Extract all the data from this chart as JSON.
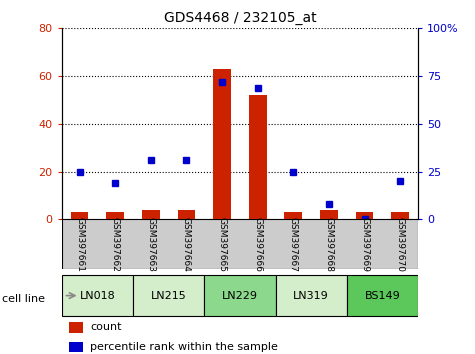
{
  "title": "GDS4468 / 232105_at",
  "samples": [
    "GSM397661",
    "GSM397662",
    "GSM397663",
    "GSM397664",
    "GSM397665",
    "GSM397666",
    "GSM397667",
    "GSM397668",
    "GSM397669",
    "GSM397670"
  ],
  "cell_lines": [
    {
      "name": "LN018",
      "span": [
        0,
        2
      ],
      "color": "#d4edca"
    },
    {
      "name": "LN215",
      "span": [
        2,
        4
      ],
      "color": "#d4edca"
    },
    {
      "name": "LN229",
      "span": [
        4,
        6
      ],
      "color": "#8cd88c"
    },
    {
      "name": "LN319",
      "span": [
        6,
        8
      ],
      "color": "#d4edca"
    },
    {
      "name": "BS149",
      "span": [
        8,
        10
      ],
      "color": "#5cc85c"
    }
  ],
  "count_values": [
    3,
    3,
    4,
    4,
    63,
    52,
    3,
    4,
    3,
    3
  ],
  "percentile_values": [
    25,
    19,
    31,
    31,
    72,
    69,
    25,
    8,
    0,
    20
  ],
  "left_ylim": [
    0,
    80
  ],
  "right_ylim": [
    0,
    100
  ],
  "left_yticks": [
    0,
    20,
    40,
    60,
    80
  ],
  "right_yticks": [
    0,
    25,
    50,
    75,
    100
  ],
  "right_yticklabels": [
    "0",
    "25",
    "50",
    "75",
    "100%"
  ],
  "bar_color": "#cc2200",
  "dot_color": "#0000cc",
  "grid_color": "#000000",
  "title_color": "#000000",
  "left_tick_color": "#cc2200",
  "right_tick_color": "#0000cc",
  "bar_width": 0.5,
  "sample_bg_color": "#cccccc",
  "cell_line_border_color": "#000000",
  "legend_items": [
    {
      "label": "count",
      "color": "#cc2200"
    },
    {
      "label": "percentile rank within the sample",
      "color": "#0000cc"
    }
  ]
}
